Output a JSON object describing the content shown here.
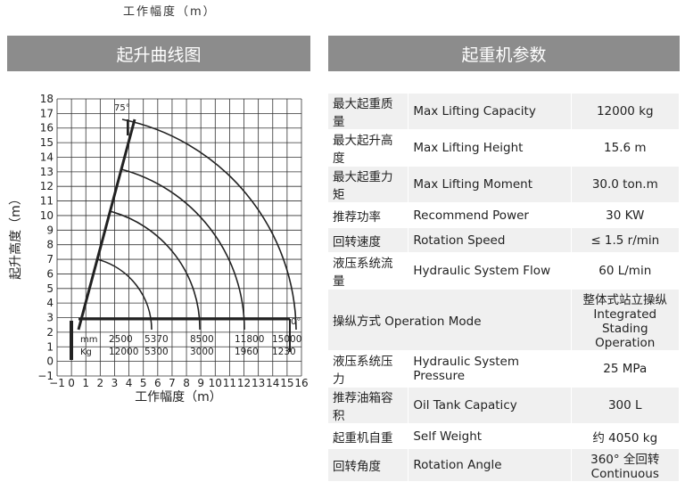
{
  "header_caption": "工作幅度（m）",
  "left_title": "起升曲线图",
  "right_title": "起重机参数",
  "chart": {
    "xlabel": "工作幅度（m）",
    "ylabel": "起升高度（m）",
    "xlim": [
      -1,
      16
    ],
    "ylim": [
      -1,
      18
    ],
    "xticks": [
      {
        "value": -1,
        "label": "−1"
      },
      0,
      1,
      2,
      3,
      4,
      5,
      6,
      7,
      8,
      9,
      10,
      11,
      12,
      13,
      14,
      15,
      16
    ],
    "yticks": [
      {
        "value": -1,
        "label": "−1"
      },
      0,
      1,
      2,
      3,
      4,
      5,
      6,
      7,
      8,
      9,
      10,
      11,
      12,
      13,
      14,
      15,
      16,
      17,
      18
    ],
    "angle_top": "75°",
    "angle_bottom": "0°",
    "radius_label": "mm",
    "load_label": "Kg",
    "radii": [
      2500,
      5370,
      8500,
      11800,
      15000
    ],
    "loads": [
      12000,
      5300,
      3000,
      1960,
      1230
    ]
  },
  "table": {
    "rows": [
      [
        "最大起重质量",
        "Max Lifting Capacity",
        "12000 kg"
      ],
      [
        "最大起升高度",
        "Max Lifting Height",
        "15.6 m"
      ],
      [
        "最大起重力矩",
        "Max Lifting Moment",
        "30.0 ton.m"
      ],
      [
        "推荐功率",
        "Recommend Power",
        "30 KW"
      ],
      [
        "回转速度",
        "Rotation Speed",
        "≤ 1.5 r/min"
      ],
      [
        "液压系统流量",
        "Hydraulic System Flow",
        "60 L/min"
      ],
      [
        "操纵方式 Operation Mode",
        "整体式站立操纵 Integrated Stading Operation"
      ],
      [
        "液压系统压力",
        "Hydraulic System Pressure",
        "25 MPa"
      ],
      [
        "推荐油箱容积",
        "Oil Tank Capaticy",
        "300 L"
      ],
      [
        "起重机自重",
        "Self Weight",
        "约 4050 kg"
      ],
      [
        "回转角度",
        "Rotation Angle",
        "360° 全回转 Continuous"
      ]
    ]
  }
}
